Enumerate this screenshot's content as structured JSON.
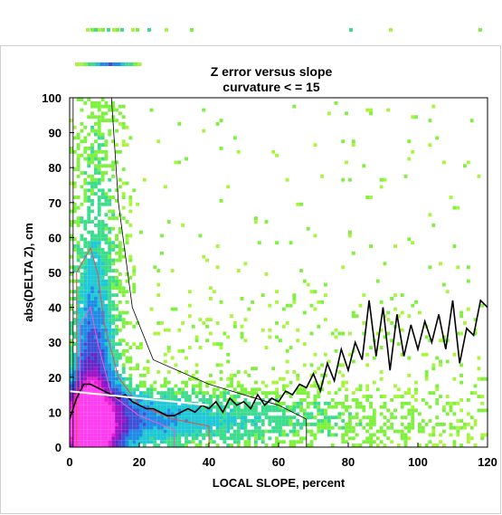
{
  "chart_data": {
    "type": "heatmap",
    "title": "Z error versus slope",
    "subtitle": "curvature < = 15",
    "xlabel": "LOCAL SLOPE, percent",
    "ylabel": "abs(DELTA Z), cm",
    "xlim": [
      0,
      120
    ],
    "ylim": [
      0,
      100
    ],
    "x_ticks": [
      "0",
      "20",
      "40",
      "60",
      "80",
      "100",
      "120"
    ],
    "y_ticks": [
      "0",
      "10",
      "20",
      "30",
      "40",
      "50",
      "60",
      "70",
      "80",
      "90",
      "100"
    ],
    "colorscale": [
      "#a7f53c",
      "#7ef03e",
      "#3cdc8c",
      "#1ec8d4",
      "#1e8ce6",
      "#3c50d8",
      "#6428c8",
      "#a014c8",
      "#e61ed2",
      "#ff3cf0"
    ],
    "grid": false,
    "series": [
      {
        "name": "",
        "color": "#000000",
        "x": [
          0,
          2,
          4,
          6,
          8,
          10,
          12,
          14,
          16,
          18,
          20,
          22,
          24,
          26,
          28,
          30,
          32,
          34,
          36,
          38,
          40,
          42,
          44,
          46,
          48,
          50,
          52,
          54,
          56,
          58,
          60,
          62,
          64,
          66,
          68,
          70,
          72,
          74,
          76,
          78,
          80,
          82,
          84,
          86,
          88,
          90,
          92,
          94,
          96,
          98,
          100,
          102,
          104,
          106,
          108,
          110,
          112,
          114,
          116,
          118,
          120
        ],
        "values": [
          8,
          14,
          18,
          18,
          17,
          16,
          15,
          14,
          15,
          13,
          12,
          11,
          11,
          10,
          9,
          9,
          10,
          11,
          10,
          12,
          11,
          13,
          10,
          14,
          12,
          13,
          11,
          15,
          12,
          14,
          13,
          16,
          15,
          18,
          17,
          21,
          16,
          24,
          19,
          28,
          22,
          30,
          25,
          42,
          26,
          40,
          22,
          38,
          26,
          35,
          28,
          36,
          30,
          38,
          28,
          42,
          24,
          34,
          32,
          42,
          40
        ]
      },
      {
        "name": "",
        "color": "#ffffff",
        "x": [
          0,
          5,
          10,
          15,
          20,
          25,
          30,
          35,
          40
        ],
        "values": [
          16,
          15.5,
          15,
          14.5,
          14,
          13.5,
          13,
          12.5,
          12
        ]
      }
    ]
  }
}
